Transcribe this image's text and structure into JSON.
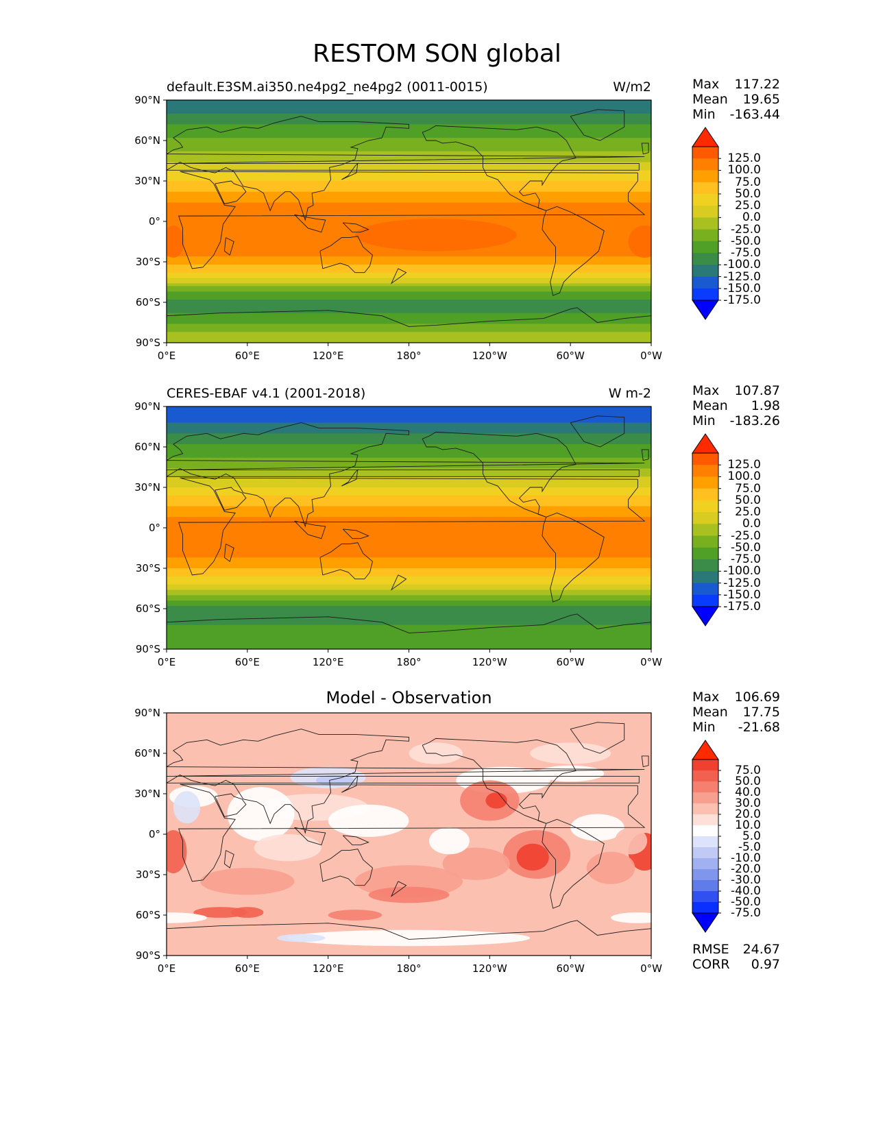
{
  "figure_title": "RESTOM SON global",
  "lat_ticks": [
    "90°N",
    "60°N",
    "30°N",
    "0°",
    "30°S",
    "60°S",
    "90°S"
  ],
  "lon_ticks": [
    "0°E",
    "60°E",
    "120°E",
    "180°",
    "120°W",
    "60°W",
    "0°W"
  ],
  "panels": [
    {
      "left_title": "default.E3SM.ai350.ne4pg2_ne4pg2 (0011-0015)",
      "right_title": "W/m2",
      "center_title": "",
      "stats": [
        {
          "label": "Max",
          "value": "117.22"
        },
        {
          "label": "Mean",
          "value": "19.65"
        },
        {
          "label": "Min",
          "value": "-163.44"
        }
      ],
      "colorbar_labels": [
        "125.0",
        "100.0",
        "75.0",
        "50.0",
        "25.0",
        "0.0",
        "-25.0",
        "-50.0",
        "-75.0",
        "-100.0",
        "-125.0",
        "-150.0",
        "-175.0"
      ],
      "colorbar_colors": [
        "#ff2a00",
        "#ff5a00",
        "#ff8000",
        "#ffa000",
        "#ffc020",
        "#f0d020",
        "#d8cc20",
        "#a8c020",
        "#78b020",
        "#50a028",
        "#3a8c48",
        "#2a7878",
        "#1a5ad0",
        "#0a3cff",
        "#0000ff"
      ],
      "colormap": "model"
    },
    {
      "left_title": "CERES-EBAF v4.1 (2001-2018)",
      "right_title": "W m-2",
      "center_title": "",
      "stats": [
        {
          "label": "Max",
          "value": "107.87"
        },
        {
          "label": "Mean",
          "value": "1.98"
        },
        {
          "label": "Min",
          "value": "-183.26"
        }
      ],
      "colorbar_labels": [
        "125.0",
        "100.0",
        "75.0",
        "50.0",
        "25.0",
        "0.0",
        "-25.0",
        "-50.0",
        "-75.0",
        "-100.0",
        "-125.0",
        "-150.0",
        "-175.0"
      ],
      "colorbar_colors": [
        "#ff2a00",
        "#ff5a00",
        "#ff8000",
        "#ffa000",
        "#ffc020",
        "#f0d020",
        "#d8cc20",
        "#a8c020",
        "#78b020",
        "#50a028",
        "#3a8c48",
        "#2a7878",
        "#1a5ad0",
        "#0a3cff",
        "#0000ff"
      ],
      "colormap": "obs"
    },
    {
      "left_title": "",
      "right_title": "",
      "center_title": "Model - Observation",
      "stats": [
        {
          "label": "Max",
          "value": "106.69"
        },
        {
          "label": "Mean",
          "value": "17.75"
        },
        {
          "label": "Min",
          "value": "-21.68"
        }
      ],
      "extra_stats": [
        {
          "label": "RMSE",
          "value": "24.67"
        },
        {
          "label": "CORR",
          "value": "0.97"
        }
      ],
      "colorbar_labels": [
        "75.0",
        "50.0",
        "40.0",
        "30.0",
        "20.0",
        "10.0",
        "5.0",
        "-5.0",
        "-10.0",
        "-20.0",
        "-30.0",
        "-40.0",
        "-50.0",
        "-75.0"
      ],
      "colorbar_colors": [
        "#ff2a00",
        "#f04030",
        "#f26050",
        "#f58070",
        "#f8a090",
        "#fbc0b0",
        "#fde0d8",
        "#ffffff",
        "#dde3fa",
        "#c0caf5",
        "#a0b0f0",
        "#8096ec",
        "#607ce8",
        "#3050f0",
        "#0a30ff",
        "#0000ff"
      ],
      "colormap": "diff"
    }
  ]
}
